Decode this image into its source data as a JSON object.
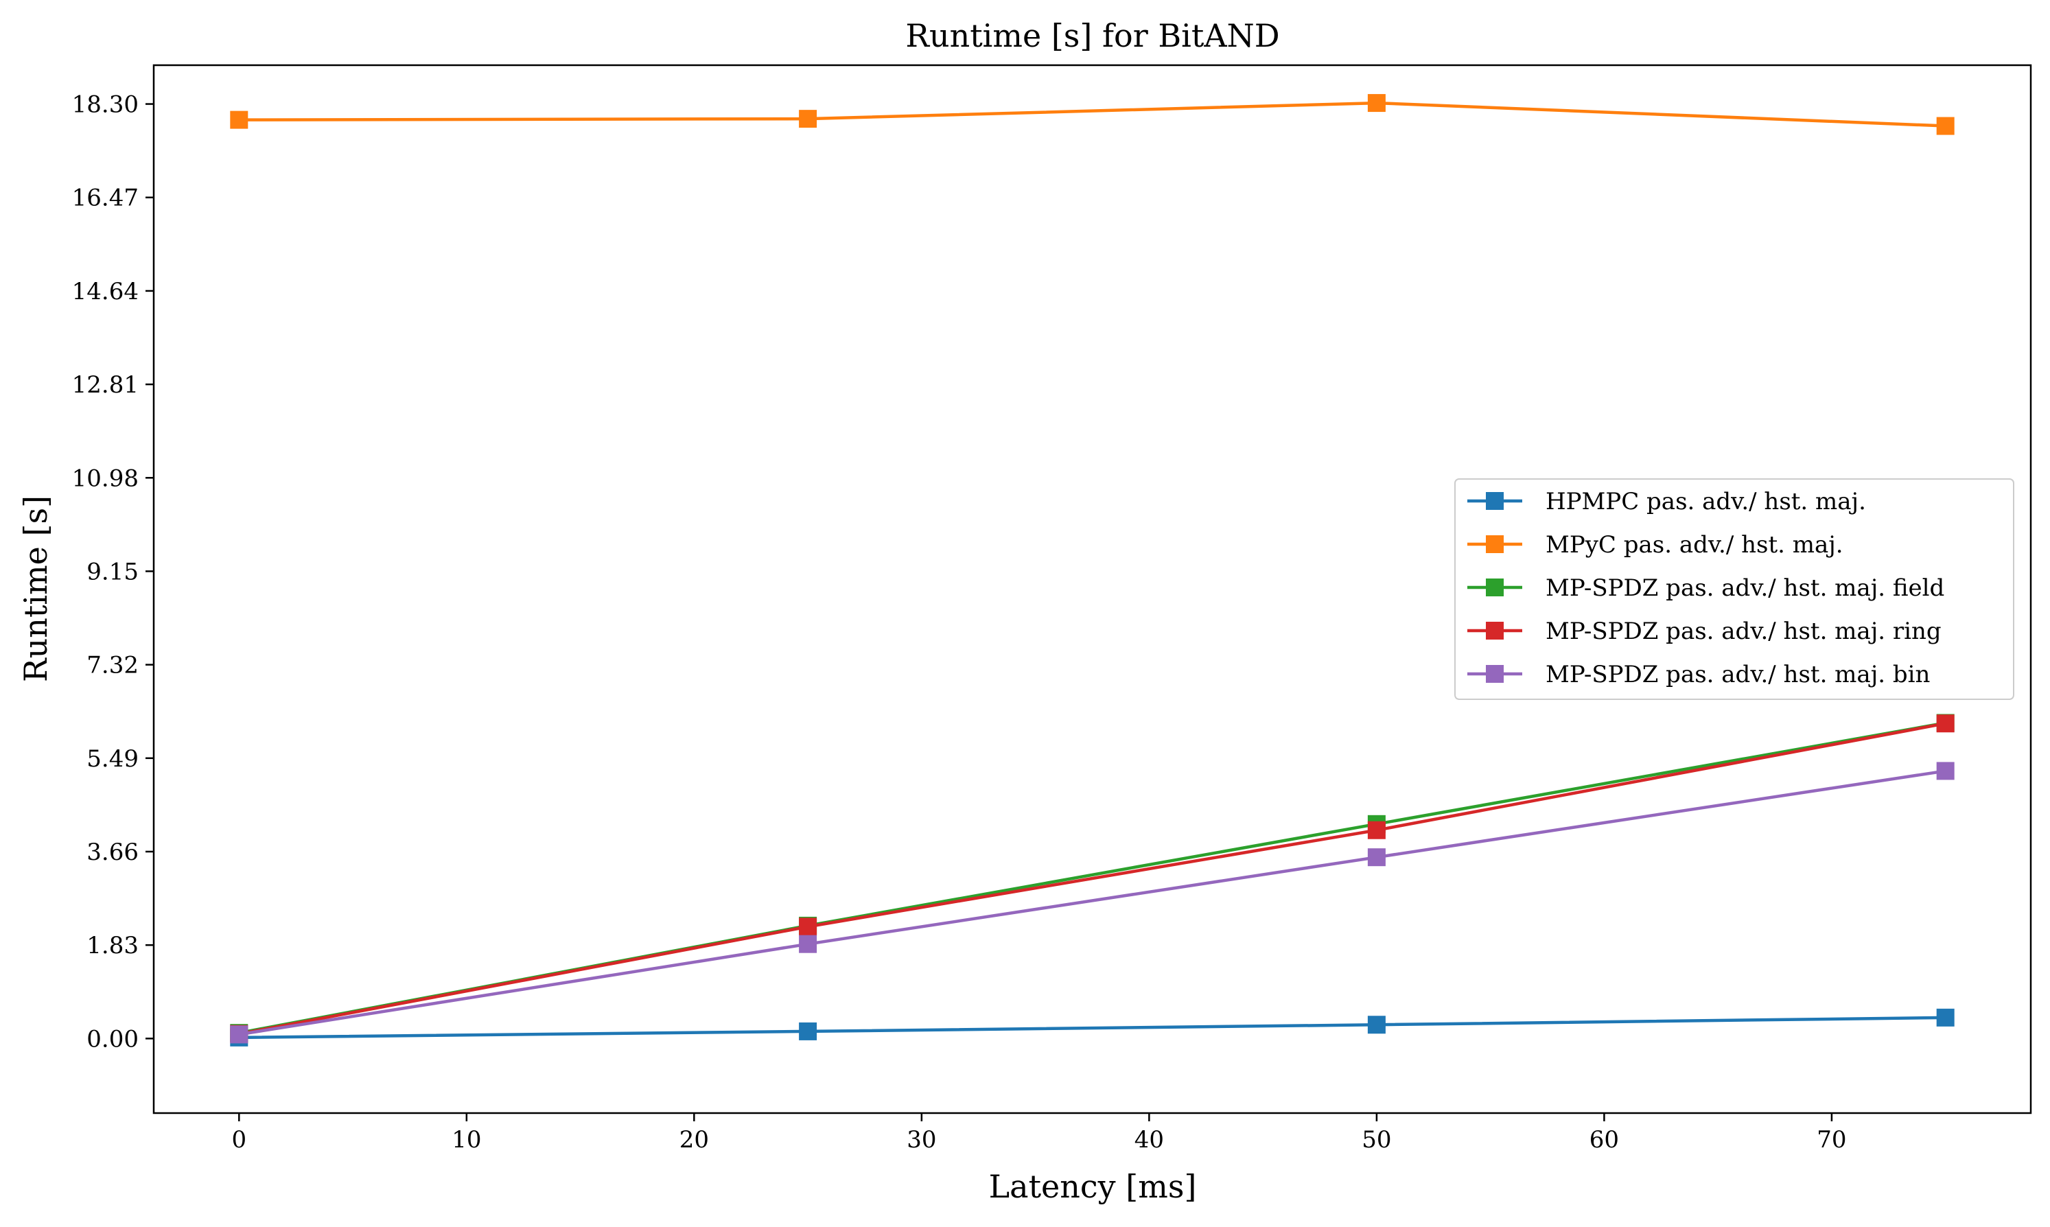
{
  "chart_data": {
    "type": "line",
    "title": "Runtime [s] for BitAND",
    "xlabel": "Latency [ms]",
    "ylabel": "Runtime [s]",
    "xlim": [
      -3.75,
      78.75
    ],
    "ylim": [
      -1.46,
      19.06
    ],
    "xticks": [
      0,
      10,
      20,
      30,
      40,
      50,
      60,
      70
    ],
    "xtick_labels": [
      "0",
      "10",
      "20",
      "30",
      "40",
      "50",
      "60",
      "70"
    ],
    "yticks": [
      0.0,
      1.83,
      3.66,
      5.49,
      7.32,
      9.15,
      10.98,
      12.81,
      14.64,
      16.47,
      18.3
    ],
    "ytick_labels": [
      "0.00",
      "1.83",
      "3.66",
      "5.49",
      "7.32",
      "9.15",
      "10.98",
      "12.81",
      "14.64",
      "16.47",
      "18.30"
    ],
    "grid": false,
    "legend_position": "center-right",
    "x": [
      0,
      25,
      50,
      75
    ],
    "marker": "square",
    "series": [
      {
        "name": "HPMPC pas. adv./ hst. maj.",
        "color": "#1f77b4",
        "values": [
          0.02,
          0.14,
          0.27,
          0.41
        ]
      },
      {
        "name": "MPyC pas. adv./ hst. maj.",
        "color": "#ff7f0e",
        "values": [
          17.99,
          18.01,
          18.32,
          17.87
        ]
      },
      {
        "name": "MP-SPDZ pas. adv./ hst. maj. field",
        "color": "#2ca02c",
        "values": [
          0.11,
          2.21,
          4.2,
          6.18
        ]
      },
      {
        "name": "MP-SPDZ pas. adv./ hst. maj. ring",
        "color": "#d62728",
        "values": [
          0.09,
          2.19,
          4.08,
          6.17
        ]
      },
      {
        "name": "MP-SPDZ pas. adv./ hst. maj. bin",
        "color": "#9467bd",
        "values": [
          0.08,
          1.85,
          3.55,
          5.24
        ]
      }
    ]
  }
}
